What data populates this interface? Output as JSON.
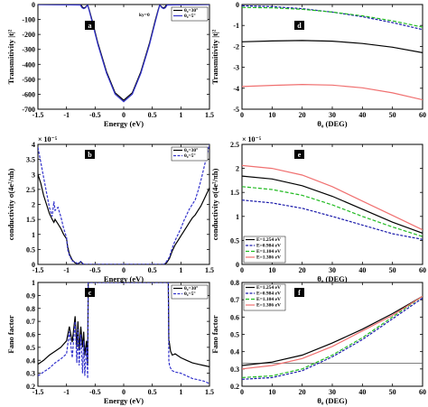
{
  "chart_data": [
    {
      "id": "a",
      "type": "line",
      "panel_label": "a",
      "xlabel": "Energy (eV)",
      "ylabel": "Transmitivity |t|²",
      "xlim": [
        -1.5,
        1.5
      ],
      "ylim": [
        -700,
        0
      ],
      "xticks": [
        "-1.5",
        "-1",
        "-0.5",
        "0",
        "0.5",
        "1",
        "1.5"
      ],
      "yticks": [
        "-700",
        "-600",
        "-500",
        "-400",
        "-300",
        "-200",
        "-100",
        "0"
      ],
      "annotation": "ky=0",
      "legend": "top-right",
      "series": [
        {
          "name": "θ₀=30°",
          "color": "#000000",
          "dash": "",
          "x": [
            -1.5,
            -0.75,
            -0.72,
            -0.7,
            -0.67,
            -0.63,
            -0.6,
            -0.55,
            -0.45,
            -0.3,
            -0.15,
            0,
            0.15,
            0.3,
            0.45,
            0.55,
            0.6,
            0.63,
            0.67,
            0.7,
            0.72,
            0.75,
            1.5
          ],
          "y": [
            0,
            -2,
            -18,
            -24,
            -18,
            -3,
            -40,
            -110,
            -260,
            -450,
            -590,
            -640,
            -590,
            -450,
            -260,
            -110,
            -40,
            -3,
            -18,
            -24,
            -18,
            -2,
            0
          ]
        },
        {
          "name": "θ₀=5°",
          "color": "#3333cc",
          "dash": "",
          "x": [
            -1.5,
            -0.76,
            -0.73,
            -0.7,
            -0.67,
            -0.63,
            -0.6,
            -0.55,
            -0.45,
            -0.3,
            -0.15,
            0,
            0.15,
            0.3,
            0.45,
            0.55,
            0.6,
            0.63,
            0.67,
            0.7,
            0.73,
            0.76,
            1.5
          ],
          "y": [
            0,
            -3,
            -22,
            -28,
            -22,
            -4,
            -45,
            -120,
            -270,
            -460,
            -600,
            -650,
            -600,
            -460,
            -270,
            -120,
            -45,
            -4,
            -22,
            -28,
            -22,
            -3,
            0
          ]
        }
      ]
    },
    {
      "id": "b",
      "type": "line",
      "panel_label": "b",
      "xlabel": "Energy (eV)",
      "ylabel": "conductivity σ(4e²/πh)",
      "exponent": "× 10⁻⁵",
      "xlim": [
        -1.5,
        1.5
      ],
      "ylim": [
        0,
        4
      ],
      "xticks": [
        "-1.5",
        "-1",
        "-0.5",
        "0",
        "0.5",
        "1",
        "1.5"
      ],
      "yticks": [
        "0",
        "0.5",
        "1",
        "1.5",
        "2",
        "2.5",
        "3",
        "3.5",
        "4"
      ],
      "legend": "top-right",
      "series": [
        {
          "name": "θ₀=30°",
          "color": "#000000",
          "dash": "",
          "x": [
            -1.5,
            -1.45,
            -1.4,
            -1.35,
            -1.3,
            -1.25,
            -1.22,
            -1.2,
            -1.15,
            -1.1,
            -1.05,
            -1.0,
            -0.98,
            -0.95,
            -0.9,
            -0.85,
            -0.8,
            -0.75,
            -0.7,
            0.7,
            0.75,
            0.8,
            0.85,
            0.9,
            0.95,
            1.0,
            1.05,
            1.1,
            1.15,
            1.2,
            1.25,
            1.3,
            1.35,
            1.4,
            1.45,
            1.5
          ],
          "y": [
            3.0,
            2.7,
            2.3,
            2.0,
            1.7,
            1.5,
            1.4,
            1.5,
            1.35,
            1.2,
            1.0,
            0.85,
            0.6,
            0.35,
            0.15,
            0.05,
            0.02,
            0.08,
            0,
            0,
            0.05,
            0.2,
            0.45,
            0.65,
            0.8,
            0.95,
            1.1,
            1.25,
            1.4,
            1.55,
            1.65,
            1.8,
            1.95,
            2.15,
            2.35,
            2.55
          ]
        },
        {
          "name": "θ₀=5°",
          "color": "#3333cc",
          "dash": "3,1.5",
          "x": [
            -1.5,
            -1.45,
            -1.4,
            -1.35,
            -1.3,
            -1.25,
            -1.22,
            -1.2,
            -1.15,
            -1.1,
            -1.05,
            -1.0,
            -0.98,
            -0.95,
            -0.9,
            -0.85,
            -0.8,
            -0.75,
            -0.7,
            0.7,
            0.75,
            0.8,
            0.85,
            0.9,
            0.95,
            1.0,
            1.05,
            1.1,
            1.15,
            1.2,
            1.25,
            1.3,
            1.35,
            1.4,
            1.45,
            1.5
          ],
          "y": [
            3.9,
            3.4,
            2.9,
            2.4,
            1.9,
            1.6,
            2.1,
            1.8,
            1.9,
            1.6,
            1.2,
            0.9,
            0.5,
            0.3,
            0.12,
            0.08,
            0.02,
            0.1,
            0,
            0,
            0.1,
            0.25,
            0.55,
            0.8,
            1.0,
            1.2,
            1.45,
            1.65,
            1.85,
            2.0,
            2.15,
            2.45,
            2.8,
            3.2,
            3.6,
            4.0
          ]
        }
      ]
    },
    {
      "id": "c",
      "type": "line",
      "panel_label": "c",
      "xlabel": "Energy (eV)",
      "ylabel": "Fano factor",
      "xlim": [
        -1.5,
        1.5
      ],
      "ylim": [
        0.2,
        1.0
      ],
      "xticks": [
        "-1.5",
        "-1",
        "-0.5",
        "0",
        "0.5",
        "1",
        "1.5"
      ],
      "yticks": [
        "0.2",
        "0.3",
        "0.4",
        "0.5",
        "0.6",
        "0.7",
        "0.8",
        "0.9",
        "1"
      ],
      "legend": "top-right",
      "series": [
        {
          "name": "θ₀=30°",
          "color": "#000000",
          "dash": "",
          "x": [
            -1.5,
            -1.4,
            -1.3,
            -1.2,
            -1.1,
            -1.0,
            -0.95,
            -0.9,
            -0.85,
            -0.82,
            -0.8,
            -0.78,
            -0.75,
            -0.72,
            -0.7,
            -0.68,
            -0.65,
            -0.63,
            -0.62,
            0.78,
            0.79,
            0.8,
            0.82,
            0.85,
            0.9,
            1.0,
            1.1,
            1.2,
            1.3,
            1.4,
            1.5
          ],
          "y": [
            0.37,
            0.4,
            0.44,
            0.47,
            0.5,
            0.55,
            0.66,
            0.54,
            0.74,
            0.5,
            0.7,
            0.48,
            0.66,
            0.5,
            0.62,
            0.44,
            0.55,
            0.36,
            1.0,
            1.0,
            0.56,
            0.53,
            0.47,
            0.44,
            0.45,
            0.42,
            0.4,
            0.38,
            0.37,
            0.36,
            0.35
          ]
        },
        {
          "name": "θ₀=5°",
          "color": "#3333cc",
          "dash": "3,1.5",
          "x": [
            -1.5,
            -1.4,
            -1.3,
            -1.2,
            -1.1,
            -1.0,
            -0.95,
            -0.9,
            -0.85,
            -0.82,
            -0.8,
            -0.78,
            -0.75,
            -0.72,
            -0.7,
            -0.68,
            -0.65,
            -0.63,
            -0.62,
            0.78,
            0.79,
            0.8,
            0.82,
            0.85,
            0.9,
            1.0,
            1.1,
            1.2,
            1.3,
            1.4,
            1.5
          ],
          "y": [
            0.28,
            0.31,
            0.34,
            0.38,
            0.41,
            0.45,
            0.62,
            0.42,
            0.7,
            0.38,
            0.64,
            0.36,
            0.6,
            0.3,
            0.55,
            0.28,
            0.5,
            0.26,
            1.0,
            1.0,
            0.4,
            0.36,
            0.34,
            0.32,
            0.31,
            0.3,
            0.28,
            0.26,
            0.25,
            0.24,
            0.22
          ]
        }
      ]
    },
    {
      "id": "d",
      "type": "line",
      "panel_label": "d",
      "xlabel": "θ₀ (DEG)",
      "ylabel": "Transmitivity |t|²",
      "xlim": [
        0,
        60
      ],
      "ylim": [
        -5,
        0
      ],
      "xticks": [
        "0",
        "10",
        "20",
        "30",
        "40",
        "50",
        "60"
      ],
      "yticks": [
        "-5",
        "-4",
        "-3",
        "-2",
        "-1",
        "0"
      ],
      "series": [
        {
          "color": "#000000",
          "dash": "",
          "x": [
            0,
            10,
            20,
            30,
            40,
            50,
            60
          ],
          "y": [
            -1.78,
            -1.74,
            -1.72,
            -1.75,
            -1.86,
            -2.04,
            -2.3
          ]
        },
        {
          "color": "#1a1aaa",
          "dash": "3,1.5",
          "x": [
            0,
            10,
            20,
            30,
            40,
            50,
            60
          ],
          "y": [
            -0.06,
            -0.1,
            -0.2,
            -0.36,
            -0.58,
            -0.86,
            -1.2
          ]
        },
        {
          "color": "#22bb22",
          "dash": "4,2",
          "x": [
            0,
            10,
            20,
            30,
            40,
            50,
            60
          ],
          "y": [
            -0.14,
            -0.16,
            -0.23,
            -0.36,
            -0.54,
            -0.78,
            -1.08
          ]
        },
        {
          "color": "#f07070",
          "dash": "",
          "x": [
            0,
            10,
            20,
            30,
            40,
            50,
            60
          ],
          "y": [
            -3.92,
            -3.86,
            -3.82,
            -3.85,
            -3.98,
            -4.22,
            -4.55
          ]
        }
      ]
    },
    {
      "id": "e",
      "type": "line",
      "panel_label": "e",
      "xlabel": "θ₀ (DEG)",
      "ylabel": "conductivity σ(4e²/πh)",
      "exponent": "× 10⁻⁵",
      "xlim": [
        0,
        60
      ],
      "ylim": [
        0,
        2.5
      ],
      "xticks": [
        "0",
        "10",
        "20",
        "30",
        "40",
        "50",
        "60"
      ],
      "yticks": [
        "0",
        "0.5",
        "1",
        "1.5",
        "2",
        "2.5"
      ],
      "legend": "bottom-left",
      "series": [
        {
          "name": "E=1.254 eV",
          "color": "#000000",
          "dash": "",
          "x": [
            0,
            10,
            20,
            30,
            40,
            50,
            60
          ],
          "y": [
            1.84,
            1.78,
            1.64,
            1.42,
            1.15,
            0.88,
            0.65
          ]
        },
        {
          "name": "E=0.984 eV",
          "color": "#1a1aaa",
          "dash": "3,1.5",
          "x": [
            0,
            10,
            20,
            30,
            40,
            50,
            60
          ],
          "y": [
            1.34,
            1.28,
            1.17,
            1.0,
            0.82,
            0.64,
            0.52
          ]
        },
        {
          "name": "E=1.104 eV",
          "color": "#22bb22",
          "dash": "4,2",
          "x": [
            0,
            10,
            20,
            30,
            40,
            50,
            60
          ],
          "y": [
            1.62,
            1.56,
            1.44,
            1.24,
            1.0,
            0.78,
            0.58
          ]
        },
        {
          "name": "E=1.386 eV",
          "color": "#f07070",
          "dash": "",
          "x": [
            0,
            10,
            20,
            30,
            40,
            50,
            60
          ],
          "y": [
            2.06,
            2.0,
            1.86,
            1.62,
            1.32,
            1.02,
            0.72
          ]
        }
      ]
    },
    {
      "id": "f",
      "type": "line",
      "panel_label": "f",
      "xlabel": "θ₀ (DEG)",
      "ylabel": "Fano factor",
      "xlim": [
        0,
        60
      ],
      "ylim": [
        0.2,
        0.8
      ],
      "xticks": [
        "0",
        "10",
        "20",
        "30",
        "40",
        "50",
        "60"
      ],
      "yticks": [
        "0.2",
        "0.3",
        "0.4",
        "0.5",
        "0.6",
        "0.7",
        "0.8"
      ],
      "legend": "top-left",
      "reference_line": 0.333,
      "series": [
        {
          "name": "E=1.254 eV",
          "color": "#000000",
          "dash": "",
          "x": [
            0,
            10,
            20,
            30,
            40,
            50,
            60
          ],
          "y": [
            0.32,
            0.34,
            0.38,
            0.45,
            0.53,
            0.62,
            0.72
          ]
        },
        {
          "name": "E=0.984 eV",
          "color": "#1a1aaa",
          "dash": "3,1.5",
          "x": [
            0,
            10,
            20,
            30,
            40,
            50,
            60
          ],
          "y": [
            0.24,
            0.25,
            0.29,
            0.37,
            0.47,
            0.59,
            0.71
          ]
        },
        {
          "name": "E=1.104 eV",
          "color": "#22bb22",
          "dash": "4,2",
          "x": [
            0,
            10,
            20,
            30,
            40,
            50,
            60
          ],
          "y": [
            0.25,
            0.26,
            0.3,
            0.38,
            0.48,
            0.6,
            0.72
          ]
        },
        {
          "name": "E=1.386 eV",
          "color": "#f07070",
          "dash": "",
          "x": [
            0,
            10,
            20,
            30,
            40,
            50,
            60
          ],
          "y": [
            0.3,
            0.32,
            0.36,
            0.43,
            0.52,
            0.61,
            0.72
          ]
        }
      ]
    }
  ]
}
